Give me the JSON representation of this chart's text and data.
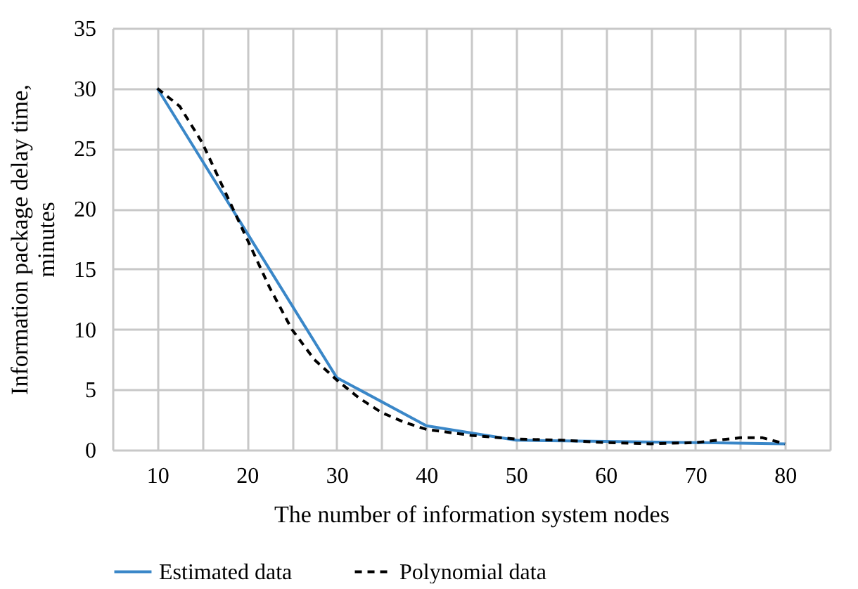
{
  "chart_data": {
    "type": "line",
    "xlabel": "The number of information system nodes",
    "ylabel": "Information package delay time, minutes",
    "xlim": [
      5,
      85
    ],
    "xticks": [
      {
        "value": 5,
        "label": null
      },
      10,
      {
        "value": 15,
        "label": null
      },
      20,
      {
        "value": 25,
        "label": null
      },
      30,
      {
        "value": 35,
        "label": null
      },
      40,
      {
        "value": 45,
        "label": null
      },
      50,
      {
        "value": 55,
        "label": null
      },
      60,
      {
        "value": 65,
        "label": null
      },
      70,
      {
        "value": 75,
        "label": null
      },
      80,
      {
        "value": 85,
        "label": null
      }
    ],
    "ylim": [
      0,
      35
    ],
    "yticks": [
      0,
      5,
      10,
      15,
      20,
      25,
      30,
      35
    ],
    "grid": true,
    "legend": "bottom",
    "marker": "none",
    "series": [
      {
        "name": "Estimated data",
        "color": "#3a87c8",
        "line_style": "solid",
        "x": [
          10,
          20,
          30,
          40,
          50,
          60,
          70,
          80
        ],
        "values": [
          30,
          18,
          6,
          2,
          0.8,
          0.7,
          0.6,
          0.5
        ]
      },
      {
        "name": "Polynomial data",
        "color": "#000000",
        "line_style": "dashed",
        "x": [
          10,
          12.5,
          15,
          17.5,
          20,
          22.5,
          25,
          27.5,
          30,
          32.5,
          35,
          37.5,
          40,
          45,
          50,
          55,
          60,
          65,
          70,
          72.5,
          75,
          77.5,
          80
        ],
        "values": [
          30,
          28.5,
          25.5,
          21.5,
          17.5,
          13.5,
          10,
          7.5,
          5.8,
          4.3,
          3.1,
          2.3,
          1.7,
          1.2,
          0.9,
          0.8,
          0.6,
          0.5,
          0.6,
          0.8,
          1.0,
          1.0,
          0.5
        ]
      }
    ]
  }
}
